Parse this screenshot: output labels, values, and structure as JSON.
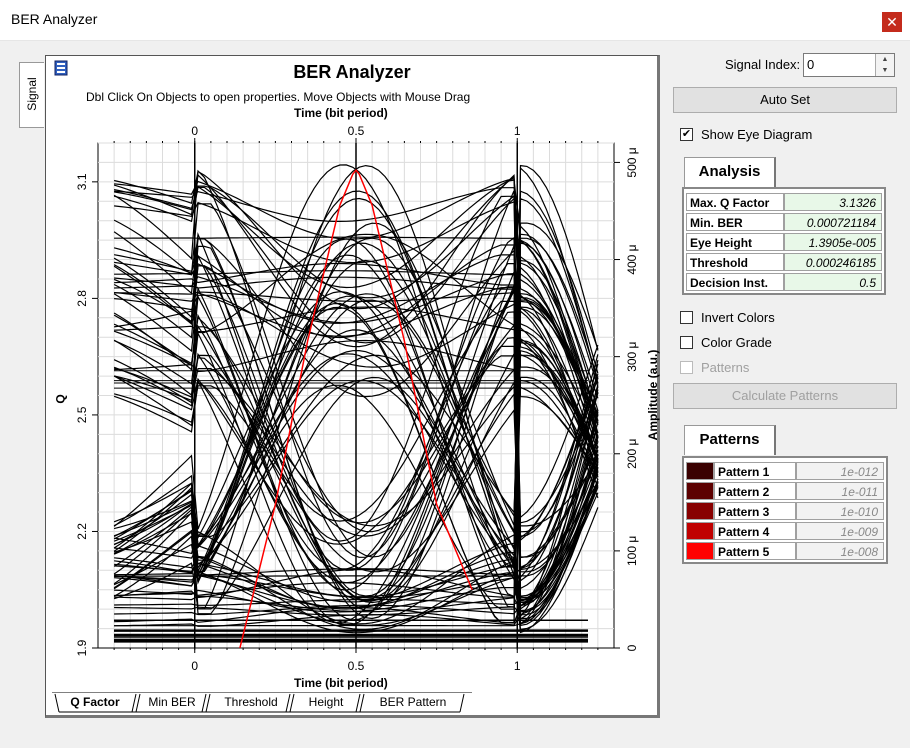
{
  "window": {
    "title": "BER Analyzer",
    "close_glyph": "✕"
  },
  "side_tab": {
    "label": "Signal"
  },
  "chart": {
    "title": "BER Analyzer",
    "subtitle": "Dbl Click On Objects to open properties.  Move Objects with Mouse Drag",
    "x_top_label": "Time (bit period)",
    "x_bottom_label": "Time (bit period)",
    "y_left_label": "Q",
    "y_right_label": "Amplitude (a.u.)",
    "x_ticks": [
      "0",
      "0.5",
      "1"
    ],
    "q_ticks": [
      "1.9",
      "2.2",
      "2.5",
      "2.8",
      "3.1"
    ],
    "amp_ticks": [
      "0",
      "100 μ",
      "200 μ",
      "300 μ",
      "400 μ",
      "500 μ"
    ]
  },
  "chart_data": {
    "type": "line",
    "title": "BER Analyzer",
    "xlabel": "Time (bit period)",
    "ylabel": "Q",
    "y2label": "Amplitude (a.u.)",
    "xlim": [
      -0.3,
      1.3
    ],
    "ylim": [
      1.9,
      3.2
    ],
    "y2lim": [
      0,
      520
    ],
    "grid": true,
    "series": [
      {
        "name": "Q Factor",
        "color": "#ff0000",
        "x": [
          0.14,
          0.25,
          0.35,
          0.45,
          0.49,
          0.5,
          0.51,
          0.55,
          0.65,
          0.75,
          0.86
        ],
        "y": [
          1.9,
          2.27,
          2.69,
          3.04,
          3.12,
          3.13,
          3.12,
          3.04,
          2.69,
          2.27,
          2.05
        ]
      }
    ]
  },
  "bottom_tabs": [
    "Q Factor",
    "Min BER",
    "Threshold",
    "Height",
    "BER Pattern"
  ],
  "signal_index": {
    "label": "Signal Index:",
    "value": "0"
  },
  "buttons": {
    "auto_set": "Auto Set",
    "calculate_patterns": "Calculate Patterns"
  },
  "checkboxes": {
    "show_eye": {
      "label": "Show Eye Diagram",
      "checked": true
    },
    "invert_colors": {
      "label": "Invert Colors",
      "checked": false
    },
    "color_grade": {
      "label": "Color Grade",
      "checked": false
    },
    "patterns": {
      "label": "Patterns",
      "checked": false
    }
  },
  "analysis": {
    "tab_label": "Analysis",
    "rows": [
      {
        "key": "Max. Q Factor",
        "value": "3.1326"
      },
      {
        "key": "Min. BER",
        "value": "0.000721184"
      },
      {
        "key": "Eye Height",
        "value": "1.3905e-005"
      },
      {
        "key": "Threshold",
        "value": "0.000246185"
      },
      {
        "key": "Decision Inst.",
        "value": "0.5"
      }
    ]
  },
  "patterns": {
    "tab_label": "Patterns",
    "rows": [
      {
        "name": "Pattern 1",
        "value": "1e-012",
        "color": "#3a0000"
      },
      {
        "name": "Pattern 2",
        "value": "1e-011",
        "color": "#5c0000"
      },
      {
        "name": "Pattern 3",
        "value": "1e-010",
        "color": "#880000"
      },
      {
        "name": "Pattern 4",
        "value": "1e-009",
        "color": "#c00000"
      },
      {
        "name": "Pattern 5",
        "value": "1e-008",
        "color": "#ff0000"
      }
    ]
  }
}
